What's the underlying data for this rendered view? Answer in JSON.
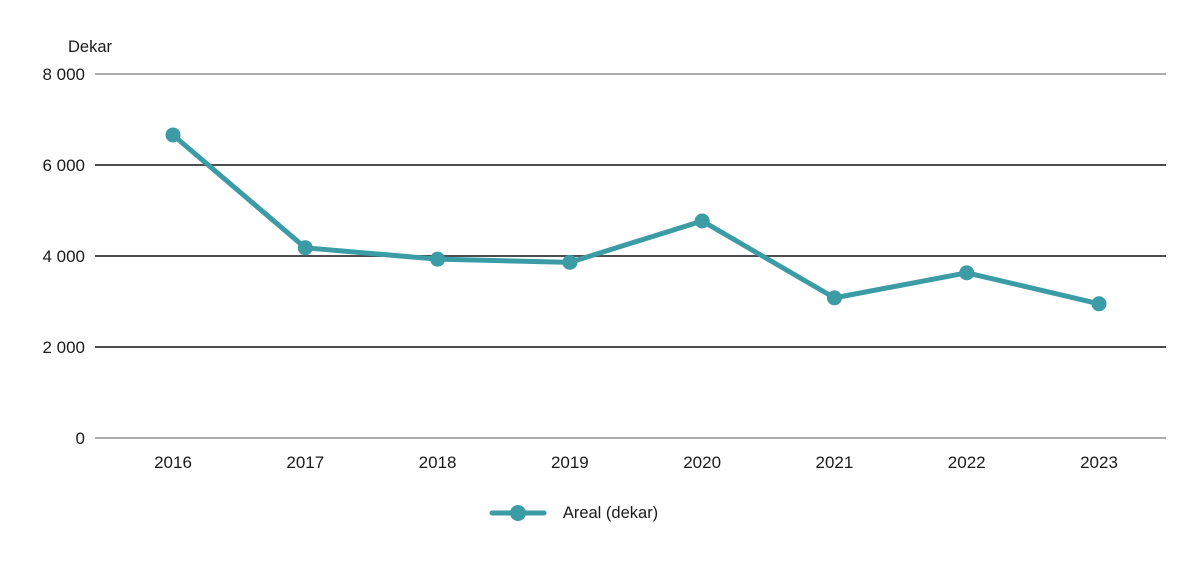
{
  "chart_data": {
    "type": "line",
    "title": "",
    "unit_label": "Dekar",
    "categories": [
      "2016",
      "2017",
      "2018",
      "2019",
      "2020",
      "2021",
      "2022",
      "2023"
    ],
    "series": [
      {
        "name": "Areal (dekar)",
        "values": [
          6660,
          4180,
          3930,
          3860,
          4770,
          3080,
          3630,
          2950
        ]
      }
    ],
    "ylim": [
      0,
      8000
    ],
    "yticks": [
      0,
      2000,
      4000,
      6000,
      8000
    ],
    "ytick_labels": [
      "0",
      "2 000",
      "4 000",
      "6 000",
      "8 000"
    ],
    "grid": "horizontal-only",
    "legend_position": "bottom-center",
    "colors": {
      "series": "#3C9CA5",
      "grid_major": "#4D4D4D",
      "grid_edge": "#ABABAB",
      "text": "#1A1A1A",
      "background": "#FFFFFF"
    }
  },
  "legend": {
    "items": [
      {
        "label": "Areal (dekar)",
        "color": "#3C9CA5",
        "marker": "line-dot"
      }
    ]
  }
}
